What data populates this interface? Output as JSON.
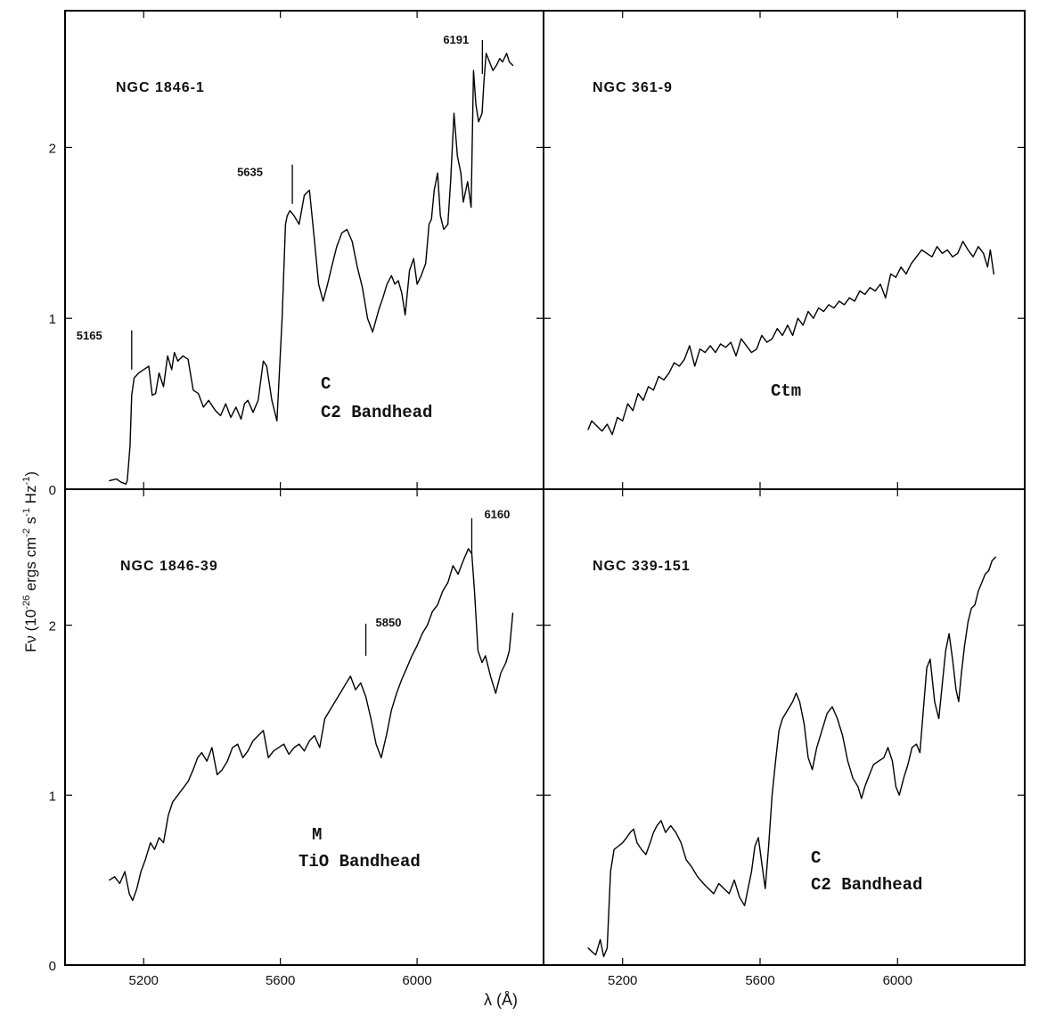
{
  "figure": {
    "ylabel_main": "F",
    "ylabel_nu": "ν",
    "ylabel_open": " (10",
    "ylabel_exp1": "-26",
    "ylabel_mid": " ergs  cm",
    "ylabel_exp2": "-2",
    "ylabel_s": " s",
    "ylabel_exp3": "-1",
    "ylabel_hz": " Hz",
    "ylabel_exp4": "-1",
    "ylabel_close": ")",
    "xlabel": "λ (Å)",
    "colors": {
      "line": "#000000",
      "background": "#ffffff"
    }
  },
  "chart_data": [
    {
      "type": "line",
      "panel": "top-left",
      "title": "NGC 1846-1",
      "spectral_class": "C",
      "feature": "C2 Bandhead",
      "xlim": [
        4970,
        6370
      ],
      "ylim": [
        0,
        2.8
      ],
      "xticks": [
        5200,
        5600,
        6000
      ],
      "xtick_labels": [],
      "yticks": [
        0,
        1,
        2
      ],
      "ytick_labels": [
        "0",
        "1",
        "2"
      ],
      "markers": [
        {
          "label": "5165",
          "x": 5165,
          "y": 0.7
        },
        {
          "label": "5635",
          "x": 5635,
          "y": 1.67
        },
        {
          "label": "6191",
          "x": 6191,
          "y": 2.43
        }
      ],
      "series": [
        {
          "x": [
            5100,
            5120,
            5135,
            5148,
            5152,
            5160,
            5165,
            5172,
            5185,
            5200,
            5215,
            5225,
            5235,
            5245,
            5258,
            5270,
            5282,
            5290,
            5300,
            5315,
            5330,
            5345,
            5360,
            5375,
            5390,
            5410,
            5425,
            5440,
            5455,
            5470,
            5485,
            5495,
            5505,
            5520,
            5535,
            5550,
            5560,
            5575,
            5590,
            5605,
            5615,
            5620,
            5628,
            5640,
            5655,
            5670,
            5685,
            5700,
            5712,
            5725,
            5738,
            5750,
            5765,
            5780,
            5795,
            5810,
            5825,
            5840,
            5855,
            5870,
            5888,
            5900,
            5912,
            5925,
            5935,
            5945,
            5955,
            5965,
            5978,
            5990,
            6000,
            6012,
            6025,
            6035,
            6042,
            6050,
            6060,
            6068,
            6078,
            6090,
            6098,
            6108,
            6118,
            6128,
            6135,
            6148,
            6158,
            6165,
            6172,
            6180,
            6190,
            6196,
            6202,
            6212,
            6222,
            6232,
            6242,
            6250,
            6262,
            6270,
            6280
          ],
          "y": [
            0.05,
            0.06,
            0.04,
            0.03,
            0.05,
            0.25,
            0.55,
            0.65,
            0.68,
            0.7,
            0.72,
            0.55,
            0.56,
            0.68,
            0.6,
            0.78,
            0.7,
            0.8,
            0.75,
            0.78,
            0.76,
            0.58,
            0.56,
            0.48,
            0.52,
            0.46,
            0.43,
            0.5,
            0.42,
            0.48,
            0.41,
            0.5,
            0.52,
            0.45,
            0.52,
            0.75,
            0.72,
            0.52,
            0.4,
            1.0,
            1.55,
            1.6,
            1.63,
            1.6,
            1.55,
            1.72,
            1.75,
            1.45,
            1.2,
            1.1,
            1.2,
            1.3,
            1.42,
            1.5,
            1.52,
            1.45,
            1.3,
            1.18,
            1.0,
            0.92,
            1.05,
            1.12,
            1.2,
            1.25,
            1.2,
            1.22,
            1.15,
            1.02,
            1.28,
            1.35,
            1.2,
            1.25,
            1.32,
            1.55,
            1.58,
            1.75,
            1.85,
            1.6,
            1.52,
            1.55,
            1.8,
            2.2,
            1.95,
            1.85,
            1.68,
            1.8,
            1.65,
            2.45,
            2.25,
            2.15,
            2.2,
            2.4,
            2.55,
            2.5,
            2.45,
            2.48,
            2.52,
            2.5,
            2.55,
            2.5,
            2.48
          ]
        }
      ]
    },
    {
      "type": "line",
      "panel": "top-right",
      "title": "NGC 361-9",
      "spectral_class": "Ctm",
      "feature": "",
      "xlim": [
        4970,
        6370
      ],
      "ylim": [
        0,
        2.8
      ],
      "xticks": [
        5200,
        5600,
        6000
      ],
      "xtick_labels": [],
      "yticks": [
        0,
        1,
        2
      ],
      "ytick_labels": [],
      "markers": [],
      "series": [
        {
          "x": [
            5100,
            5110,
            5125,
            5140,
            5155,
            5170,
            5185,
            5200,
            5215,
            5230,
            5245,
            5260,
            5275,
            5290,
            5305,
            5320,
            5335,
            5350,
            5365,
            5380,
            5395,
            5410,
            5425,
            5440,
            5455,
            5470,
            5485,
            5500,
            5515,
            5530,
            5545,
            5560,
            5575,
            5590,
            5605,
            5620,
            5635,
            5650,
            5665,
            5680,
            5695,
            5710,
            5725,
            5740,
            5755,
            5770,
            5785,
            5800,
            5815,
            5830,
            5845,
            5860,
            5875,
            5890,
            5905,
            5920,
            5935,
            5950,
            5965,
            5980,
            5995,
            6010,
            6025,
            6040,
            6055,
            6070,
            6085,
            6100,
            6115,
            6130,
            6145,
            6160,
            6175,
            6190,
            6205,
            6220,
            6235,
            6250,
            6262,
            6270,
            6280
          ],
          "y": [
            0.35,
            0.4,
            0.37,
            0.34,
            0.38,
            0.32,
            0.42,
            0.4,
            0.5,
            0.46,
            0.56,
            0.52,
            0.6,
            0.58,
            0.66,
            0.64,
            0.68,
            0.74,
            0.72,
            0.76,
            0.84,
            0.72,
            0.82,
            0.8,
            0.84,
            0.8,
            0.85,
            0.83,
            0.86,
            0.78,
            0.88,
            0.84,
            0.8,
            0.82,
            0.9,
            0.86,
            0.88,
            0.94,
            0.9,
            0.96,
            0.9,
            1.0,
            0.96,
            1.04,
            1.0,
            1.06,
            1.04,
            1.08,
            1.06,
            1.1,
            1.08,
            1.12,
            1.1,
            1.16,
            1.14,
            1.18,
            1.16,
            1.2,
            1.12,
            1.26,
            1.24,
            1.3,
            1.26,
            1.32,
            1.36,
            1.4,
            1.38,
            1.36,
            1.42,
            1.38,
            1.4,
            1.36,
            1.38,
            1.45,
            1.4,
            1.36,
            1.42,
            1.38,
            1.3,
            1.4,
            1.26
          ]
        }
      ]
    },
    {
      "type": "line",
      "panel": "bottom-left",
      "title": "NGC 1846-39",
      "spectral_class": "M",
      "feature": "TiO Bandhead",
      "xlim": [
        4970,
        6370
      ],
      "ylim": [
        0,
        2.8
      ],
      "xticks": [
        5200,
        5600,
        6000
      ],
      "xtick_labels": [
        "5200",
        "5600",
        "6000"
      ],
      "yticks": [
        0,
        1,
        2
      ],
      "ytick_labels": [
        "0",
        "1",
        "2"
      ],
      "markers": [
        {
          "label": "5850",
          "x": 5850,
          "y": 1.82
        },
        {
          "label": "6160",
          "x": 6160,
          "y": 2.42
        }
      ],
      "series": [
        {
          "x": [
            5100,
            5115,
            5130,
            5145,
            5158,
            5168,
            5180,
            5192,
            5205,
            5220,
            5232,
            5245,
            5258,
            5272,
            5285,
            5300,
            5315,
            5330,
            5345,
            5358,
            5370,
            5385,
            5400,
            5415,
            5430,
            5445,
            5460,
            5475,
            5490,
            5505,
            5520,
            5535,
            5550,
            5565,
            5580,
            5595,
            5610,
            5625,
            5640,
            5655,
            5670,
            5685,
            5700,
            5715,
            5730,
            5745,
            5760,
            5775,
            5790,
            5805,
            5820,
            5835,
            5850,
            5865,
            5880,
            5895,
            5910,
            5925,
            5940,
            5955,
            5970,
            5985,
            6000,
            6015,
            6030,
            6045,
            6060,
            6075,
            6090,
            6105,
            6120,
            6135,
            6150,
            6160,
            6168,
            6178,
            6190,
            6200,
            6215,
            6230,
            6245,
            6260,
            6270,
            6280
          ],
          "y": [
            0.5,
            0.52,
            0.48,
            0.55,
            0.42,
            0.38,
            0.45,
            0.55,
            0.62,
            0.72,
            0.68,
            0.75,
            0.72,
            0.88,
            0.96,
            1.0,
            1.04,
            1.08,
            1.15,
            1.22,
            1.25,
            1.2,
            1.28,
            1.12,
            1.15,
            1.2,
            1.28,
            1.3,
            1.22,
            1.26,
            1.32,
            1.35,
            1.38,
            1.22,
            1.26,
            1.28,
            1.3,
            1.24,
            1.28,
            1.3,
            1.26,
            1.32,
            1.35,
            1.28,
            1.45,
            1.5,
            1.55,
            1.6,
            1.65,
            1.7,
            1.62,
            1.66,
            1.58,
            1.45,
            1.3,
            1.22,
            1.35,
            1.5,
            1.6,
            1.68,
            1.75,
            1.82,
            1.88,
            1.95,
            2.0,
            2.08,
            2.12,
            2.2,
            2.25,
            2.35,
            2.3,
            2.38,
            2.45,
            2.42,
            2.2,
            1.85,
            1.78,
            1.82,
            1.7,
            1.6,
            1.72,
            1.78,
            1.85,
            2.07
          ]
        }
      ]
    },
    {
      "type": "line",
      "panel": "bottom-right",
      "title": "NGC 339-151",
      "spectral_class": "C",
      "feature": "C2 Bandhead",
      "xlim": [
        4970,
        6370
      ],
      "ylim": [
        0,
        2.8
      ],
      "xticks": [
        5200,
        5600,
        6000
      ],
      "xtick_labels": [
        "5200",
        "5600",
        "6000"
      ],
      "yticks": [
        0,
        1,
        2
      ],
      "ytick_labels": [],
      "markers": [],
      "series": [
        {
          "x": [
            5100,
            5110,
            5122,
            5135,
            5145,
            5155,
            5165,
            5175,
            5188,
            5200,
            5212,
            5222,
            5232,
            5242,
            5255,
            5268,
            5280,
            5290,
            5300,
            5312,
            5325,
            5340,
            5355,
            5370,
            5385,
            5400,
            5418,
            5435,
            5450,
            5465,
            5480,
            5495,
            5510,
            5525,
            5540,
            5555,
            5565,
            5575,
            5585,
            5595,
            5605,
            5615,
            5625,
            5635,
            5645,
            5655,
            5665,
            5680,
            5695,
            5705,
            5715,
            5728,
            5740,
            5752,
            5765,
            5780,
            5795,
            5810,
            5825,
            5840,
            5855,
            5870,
            5885,
            5895,
            5905,
            5918,
            5930,
            5945,
            5960,
            5972,
            5985,
            5995,
            6005,
            6018,
            6030,
            6042,
            6055,
            6065,
            6075,
            6085,
            6095,
            6108,
            6120,
            6130,
            6140,
            6150,
            6160,
            6170,
            6178,
            6186,
            6195,
            6205,
            6215,
            6225,
            6235,
            6245,
            6255,
            6265,
            6275,
            6285
          ],
          "y": [
            0.1,
            0.08,
            0.06,
            0.15,
            0.05,
            0.1,
            0.55,
            0.68,
            0.7,
            0.72,
            0.75,
            0.78,
            0.8,
            0.72,
            0.68,
            0.65,
            0.72,
            0.78,
            0.82,
            0.85,
            0.78,
            0.82,
            0.78,
            0.72,
            0.62,
            0.58,
            0.52,
            0.48,
            0.45,
            0.42,
            0.48,
            0.45,
            0.42,
            0.5,
            0.4,
            0.35,
            0.45,
            0.55,
            0.7,
            0.75,
            0.6,
            0.45,
            0.7,
            1.0,
            1.2,
            1.38,
            1.45,
            1.5,
            1.55,
            1.6,
            1.55,
            1.42,
            1.22,
            1.15,
            1.28,
            1.38,
            1.48,
            1.52,
            1.45,
            1.35,
            1.2,
            1.1,
            1.05,
            0.98,
            1.05,
            1.12,
            1.18,
            1.2,
            1.22,
            1.28,
            1.2,
            1.05,
            1.0,
            1.1,
            1.18,
            1.28,
            1.3,
            1.25,
            1.5,
            1.75,
            1.8,
            1.55,
            1.45,
            1.65,
            1.85,
            1.95,
            1.8,
            1.62,
            1.55,
            1.72,
            1.88,
            2.02,
            2.1,
            2.12,
            2.2,
            2.25,
            2.3,
            2.32,
            2.38,
            2.4
          ]
        }
      ]
    }
  ]
}
